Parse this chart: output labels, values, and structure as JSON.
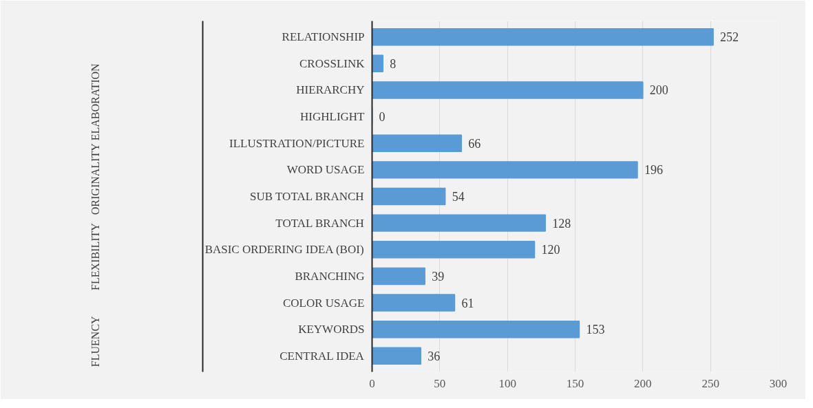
{
  "chart_data": {
    "type": "bar",
    "orientation": "horizontal",
    "categories": [
      "RELATIONSHIP",
      "CROSSLINK",
      "HIERARCHY",
      "HIGHLIGHT",
      "ILLUSTRATION/PICTURE",
      "WORD USAGE",
      "SUB TOTAL BRANCH",
      "TOTAL BRANCH",
      "BASIC ORDERING IDEA (BOI)",
      "BRANCHING",
      "COLOR USAGE",
      "KEYWORDS",
      "CENTRAL IDEA"
    ],
    "values": [
      252,
      8,
      200,
      0,
      66,
      196,
      54,
      128,
      120,
      39,
      61,
      153,
      36
    ],
    "color": "#5b9bd5",
    "xlim": [
      0,
      300
    ],
    "xticks": [
      0,
      50,
      100,
      150,
      200,
      250,
      300
    ],
    "grid": "x",
    "data_labels": true,
    "legend": false,
    "annotations": [
      "ELABORATION",
      "ORIGINALITY",
      "FLEXIBILITY",
      "FLUENCY"
    ]
  }
}
